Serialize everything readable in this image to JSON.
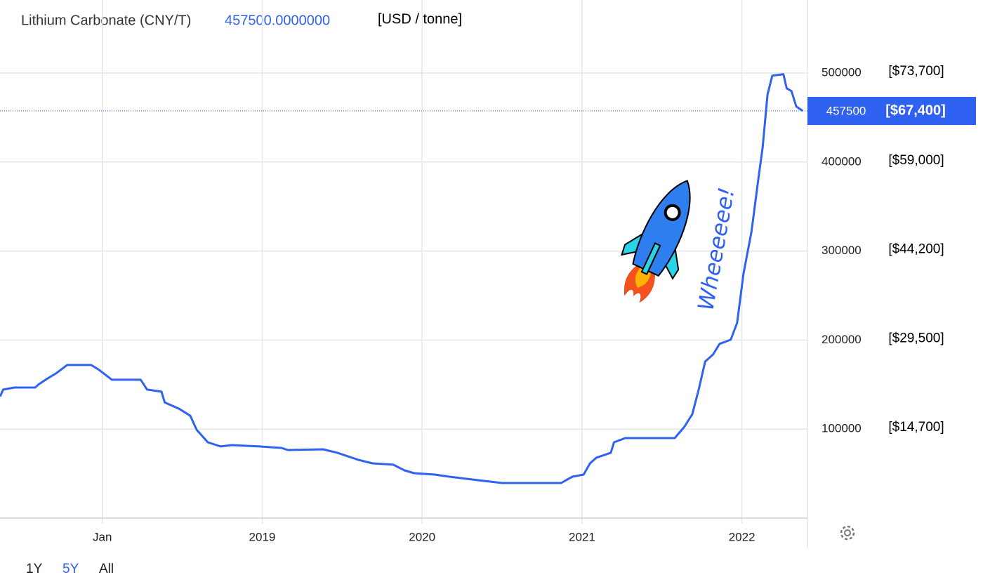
{
  "chart_data": {
    "type": "line",
    "title": "Lithium Carbonate (CNY/T)",
    "last_value_label": "457500.0000000",
    "unit_note": "[USD / tonne]",
    "annotation": "Wheeeeee!",
    "x": [
      2017.36,
      2017.38,
      2017.45,
      2017.58,
      2017.6,
      2017.65,
      2017.71,
      2017.78,
      2017.93,
      2017.98,
      2018.06,
      2018.24,
      2018.28,
      2018.37,
      2018.39,
      2018.48,
      2018.55,
      2018.59,
      2018.66,
      2018.74,
      2018.81,
      2018.98,
      2019.12,
      2019.16,
      2019.38,
      2019.47,
      2019.6,
      2019.69,
      2019.82,
      2019.89,
      2019.95,
      2020.08,
      2020.17,
      2020.35,
      2020.5,
      2020.87,
      2020.9,
      2020.94,
      2021.01,
      2021.05,
      2021.09,
      2021.18,
      2021.2,
      2021.27,
      2021.58,
      2021.64,
      2021.69,
      2021.73,
      2021.77,
      2021.82,
      2021.86,
      2021.93,
      2021.97,
      2022.01,
      2022.06,
      2022.1,
      2022.13,
      2022.16,
      2022.19,
      2022.26,
      2022.28,
      2022.31,
      2022.34,
      2022.38
    ],
    "series": [
      {
        "name": "Lithium Carbonate (CNY/T)",
        "color": "#2f62f0",
        "values": [
          136500,
          144400,
          146700,
          146700,
          150000,
          156000,
          162500,
          172000,
          172000,
          166500,
          155400,
          155400,
          144400,
          142000,
          130000,
          122900,
          115000,
          99300,
          85200,
          80500,
          82000,
          80500,
          78900,
          76500,
          77300,
          73400,
          65500,
          61500,
          60000,
          53600,
          50500,
          48900,
          46500,
          42600,
          39400,
          39400,
          42600,
          46500,
          48900,
          61500,
          67900,
          73400,
          85200,
          89900,
          89900,
          102600,
          116800,
          144400,
          175900,
          183800,
          195700,
          200400,
          219300,
          274600,
          321900,
          377100,
          416600,
          475700,
          497000,
          498600,
          482800,
          479700,
          462300,
          457500
        ]
      }
    ],
    "last_value": 457500,
    "last_value_usd_label": "[$67,400]",
    "xlim": [
      2017.36,
      2022.41
    ],
    "xticks": [
      {
        "value": 2018,
        "label": "Jan"
      },
      2019,
      2020,
      2021,
      2022
    ],
    "ylim": [
      0,
      582000
    ],
    "yticks": [
      100000,
      200000,
      300000,
      400000,
      500000
    ],
    "y_usd_labels": [
      "[$14,700]",
      "[$29,500]",
      "[$44,200]",
      "[$59,000]",
      "[$73,700]"
    ],
    "grid": true,
    "range_buttons": [
      "1Y",
      "5Y",
      "All"
    ],
    "active_range_index": 1
  }
}
